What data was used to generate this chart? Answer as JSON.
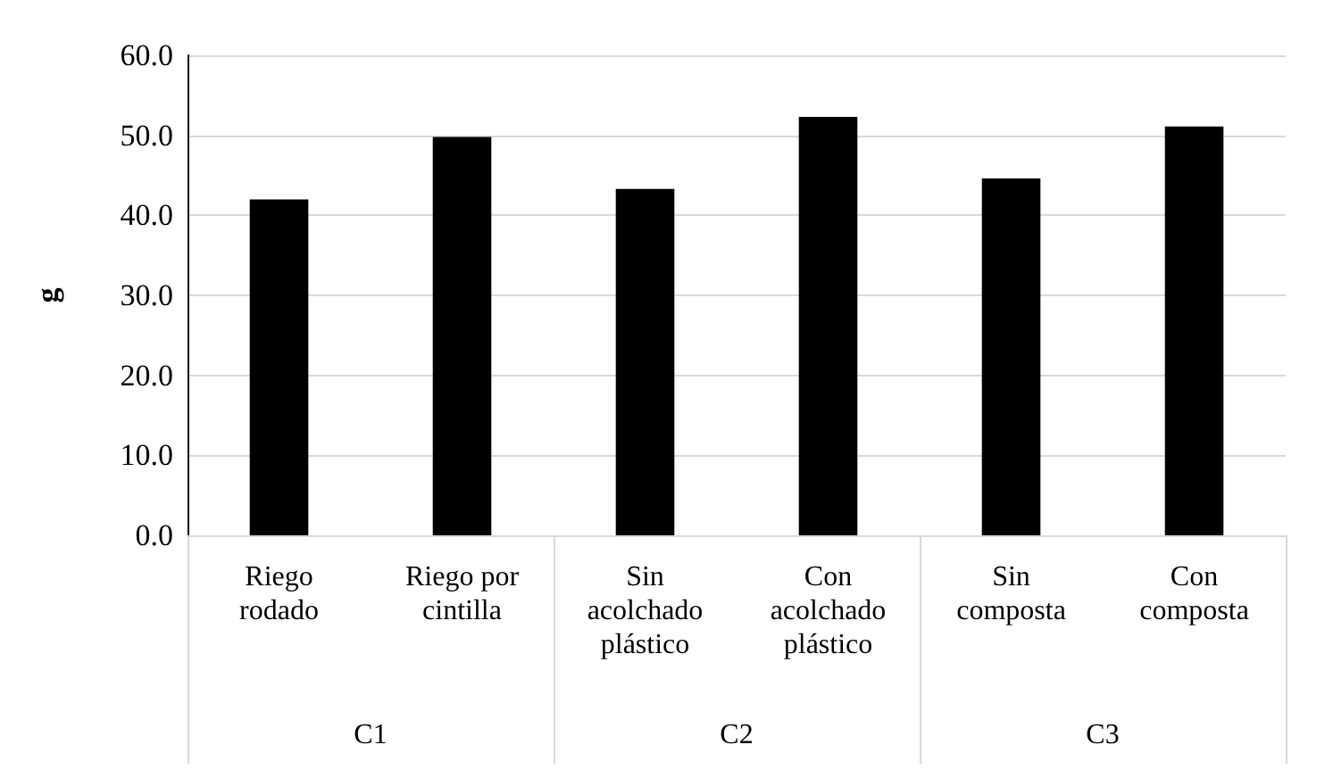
{
  "chart_data": {
    "type": "bar",
    "ylabel": "g",
    "categories": [
      "Riego\nrodado",
      "Riego por\ncintilla",
      "Sin\nacolchado\nplástico",
      "Con\nacolchado\nplástico",
      "Sin\ncomposta",
      "Con\ncomposta"
    ],
    "values": [
      42.0,
      49.8,
      43.3,
      52.3,
      44.6,
      51.1
    ],
    "color": "#000000",
    "ylim": [
      0,
      60
    ],
    "yticks": [
      {
        "value": 0,
        "label": "0.0"
      },
      {
        "value": 10,
        "label": "10.0"
      },
      {
        "value": 20,
        "label": "20.0"
      },
      {
        "value": 30,
        "label": "30.0"
      },
      {
        "value": 40,
        "label": "40.0"
      },
      {
        "value": 50,
        "label": "50.0"
      },
      {
        "value": 60,
        "label": "60.0"
      }
    ],
    "grid": "y",
    "annotations": [
      "C1",
      "C2",
      "C3"
    ]
  }
}
